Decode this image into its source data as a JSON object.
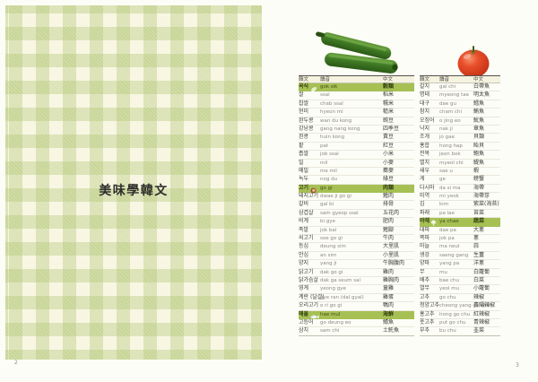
{
  "left_page": {
    "title": "美味學韓文",
    "page_number": "2"
  },
  "right_page": {
    "page_number": "3",
    "photos": {
      "left": "zucchini",
      "right": "tomato"
    },
    "colors": {
      "highlight_green": "#a6c054",
      "header_bg": "#f5f2df",
      "gingham_green": "#dbe3b5"
    },
    "tables": [
      {
        "headers": {
          "korean": "韓文",
          "pronunciation": "讀音",
          "chinese": "中文"
        },
        "rows": [
          {
            "kr": "곡식",
            "pron": "gok sik",
            "zh": "穀類",
            "highlight": true,
            "icon": "grain-icon"
          },
          {
            "kr": "쌀",
            "pron": "ssal",
            "zh": "稻米"
          },
          {
            "kr": "찹쌀",
            "pron": "chab ssal",
            "zh": "糯米"
          },
          {
            "kr": "현미",
            "pron": "hyeon mi",
            "zh": "糙米"
          },
          {
            "kr": "완두콩",
            "pron": "wan du kong",
            "zh": "豌豆"
          },
          {
            "kr": "강낭콩",
            "pron": "gang nang kong",
            "zh": "四季豆"
          },
          {
            "kr": "흰콩",
            "pron": "huin kong",
            "zh": "黃豆"
          },
          {
            "kr": "팥",
            "pron": "pat",
            "zh": "紅豆"
          },
          {
            "kr": "좁쌀",
            "pron": "job ssal",
            "zh": "小米"
          },
          {
            "kr": "밀",
            "pron": "mil",
            "zh": "小麥"
          },
          {
            "kr": "메밀",
            "pron": "me mil",
            "zh": "蕎麥"
          },
          {
            "kr": "녹두",
            "pron": "nog du",
            "zh": "綠豆"
          },
          {
            "kr": "고기",
            "pron": "go gi",
            "zh": "肉類",
            "highlight": true,
            "icon": "meat-icon"
          },
          {
            "kr": "돼지고기",
            "pron": "dwae ji go gi",
            "zh": "豬肉"
          },
          {
            "kr": "갈비",
            "pron": "gal bi",
            "zh": "排骨"
          },
          {
            "kr": "삼겹살",
            "pron": "sam gyeop ssal",
            "zh": "五花肉"
          },
          {
            "kr": "비계",
            "pron": "bi gye",
            "zh": "肥肉"
          },
          {
            "kr": "족발",
            "pron": "jok bal",
            "zh": "豬腳"
          },
          {
            "kr": "쇠고기",
            "pron": "soe go gi",
            "zh": "牛肉"
          },
          {
            "kr": "등심",
            "pron": "deung sim",
            "zh": "大里肌"
          },
          {
            "kr": "안심",
            "pron": "an sim",
            "zh": "小里肌"
          },
          {
            "kr": "양지",
            "pron": "yang ji",
            "zh": "牛胸腹肉"
          },
          {
            "kr": "닭고기",
            "pron": "dak go gi",
            "zh": "雞肉"
          },
          {
            "kr": "닭가슴살",
            "pron": "dak ga seum sal",
            "zh": "雞胸肉"
          },
          {
            "kr": "영계",
            "pron": "yeong gye",
            "zh": "童雞"
          },
          {
            "kr": "계란 (달걀)",
            "pron": "gye ran (dal gyal)",
            "zh": "雞蛋"
          },
          {
            "kr": "오리고기",
            "pron": "o ri go gi",
            "zh": "鴨肉"
          },
          {
            "kr": "해물",
            "pron": "hae mul",
            "zh": "海鮮",
            "highlight": true,
            "icon": "fish-icon"
          },
          {
            "kr": "고등어",
            "pron": "go deung eo",
            "zh": "鯖魚"
          },
          {
            "kr": "삼치",
            "pron": "sam chi",
            "zh": "土魠魚"
          }
        ]
      },
      {
        "headers": {
          "korean": "韓文",
          "pronunciation": "讀音",
          "chinese": "中文"
        },
        "rows": [
          {
            "kr": "갈치",
            "pron": "gal chi",
            "zh": "白帶魚"
          },
          {
            "kr": "명태",
            "pron": "myeong tae",
            "zh": "明太魚"
          },
          {
            "kr": "대구",
            "pron": "dae gu",
            "zh": "鱈魚"
          },
          {
            "kr": "참치",
            "pron": "cham chi",
            "zh": "鮪魚"
          },
          {
            "kr": "오징어",
            "pron": "o jing eo",
            "zh": "魷魚"
          },
          {
            "kr": "낙지",
            "pron": "nak ji",
            "zh": "章魚"
          },
          {
            "kr": "조개",
            "pron": "jo gae",
            "zh": "貝類"
          },
          {
            "kr": "홍합",
            "pron": "hong hap",
            "zh": "貽貝"
          },
          {
            "kr": "전복",
            "pron": "jeon bok",
            "zh": "鮑魚"
          },
          {
            "kr": "멸치",
            "pron": "myeol chi",
            "zh": "鯷魚"
          },
          {
            "kr": "새우",
            "pron": "sae u",
            "zh": "蝦"
          },
          {
            "kr": "게",
            "pron": "ge",
            "zh": "螃蟹"
          },
          {
            "kr": "다시마",
            "pron": "da si ma",
            "zh": "海帶"
          },
          {
            "kr": "미역",
            "pron": "mi yeok",
            "zh": "海帶芽"
          },
          {
            "kr": "김",
            "pron": "kim",
            "zh": "紫菜(海苔)"
          },
          {
            "kr": "파래",
            "pron": "pa lae",
            "zh": "苔菜"
          },
          {
            "kr": "야채",
            "pron": "ya chae",
            "zh": "蔬菜",
            "highlight": true,
            "icon": "vegetable-icon"
          },
          {
            "kr": "대파",
            "pron": "dae pa",
            "zh": "大蔥"
          },
          {
            "kr": "쪽파",
            "pron": "jok pa",
            "zh": "蔥"
          },
          {
            "kr": "마늘",
            "pron": "ma neul",
            "zh": "蒜"
          },
          {
            "kr": "생강",
            "pron": "saeng gang",
            "zh": "生薑"
          },
          {
            "kr": "양파",
            "pron": "yang pa",
            "zh": "洋蔥"
          },
          {
            "kr": "무",
            "pron": "mu",
            "zh": "白蘿蔔"
          },
          {
            "kr": "배추",
            "pron": "bae chu",
            "zh": "白菜"
          },
          {
            "kr": "열무",
            "pron": "yeol mu",
            "zh": "小蘿蔔"
          },
          {
            "kr": "고추",
            "pron": "go chu",
            "zh": "辣椒"
          },
          {
            "kr": "청양고추",
            "pron": "cheong yang go chu",
            "zh": "青陽辣椒"
          },
          {
            "kr": "홍고추",
            "pron": "hong go chu",
            "zh": "紅辣椒"
          },
          {
            "kr": "풋고추",
            "pron": "put go chu",
            "zh": "青辣椒"
          },
          {
            "kr": "부추",
            "pron": "bu chu",
            "zh": "韭菜"
          }
        ]
      }
    ]
  }
}
